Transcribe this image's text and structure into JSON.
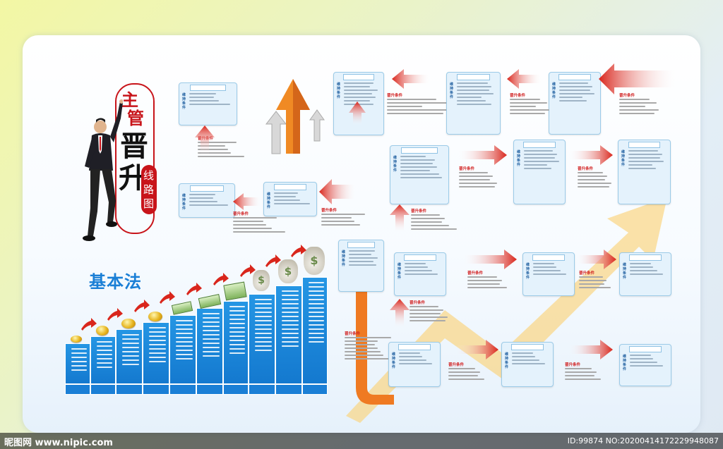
{
  "title": {
    "char1": "主",
    "char2": "管",
    "char3": "晋",
    "char4": "升",
    "sub1": "线",
    "sub2": "路",
    "sub3": "图"
  },
  "basic_law": "基本法",
  "promo_condition": "晋升条件",
  "maintain_condition": "维持条件",
  "watermark": {
    "left": "昵图网 www.nipic.com",
    "right": "ID:99874 NO:20200414172229948087"
  },
  "colors": {
    "accent_blue": "#1a7fd6",
    "arrow_red": "#d9261c",
    "title_red": "#c8141a"
  },
  "icons": [
    "coin-icon",
    "cash-bundle-icon",
    "money-bag-icon",
    "red-arrow-icon",
    "orange-arrow-icon",
    "businessman-image"
  ]
}
